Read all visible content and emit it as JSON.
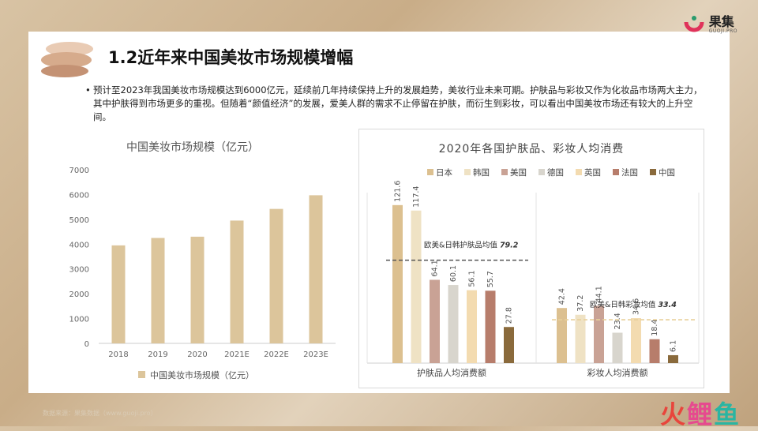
{
  "brand": {
    "name": "果集",
    "sub": "GUOJI.PRO"
  },
  "title": "1.2近年来中国美妆市场规模增幅",
  "bullet": "预计至2023年我国美妆市场规模达到6000亿元，延续前几年持续保持上升的发展趋势，美妆行业未来可期。护肤品与彩妆又作为化妆品市场两大主力，其中护肤得到市场更多的重视。但随着“颜值经济”的发展，爱美人群的需求不止停留在护肤，而衍生到彩妆，可以看出中国美妆市场还有较大的上升空间。",
  "footer": "数据来源：果集数据（www.guoji.pro）",
  "watermark": {
    "c1": "火",
    "c2": "鲤",
    "c3": "鱼"
  },
  "colors": {
    "tan": "#dcc59b",
    "dashed_dark": "#555555",
    "dashed_light": "#e8cf9a"
  },
  "chart_data": [
    {
      "type": "bar",
      "title": "中国美妆市场规模（亿元）",
      "categories": [
        "2018",
        "2019",
        "2020",
        "2021E",
        "2022E",
        "2023E"
      ],
      "series": [
        {
          "name": "中国美妆市场规模（亿元）",
          "values": [
            3950,
            4250,
            4300,
            4950,
            5420,
            5970
          ]
        }
      ],
      "yticks": [
        "0",
        "1000",
        "2000",
        "3000",
        "4000",
        "5000",
        "6000",
        "7000"
      ],
      "ylim": [
        0,
        7000
      ],
      "grid": false,
      "legend": "bottom"
    },
    {
      "type": "bar",
      "title": "2020年各国护肤品、彩妆人均消费",
      "categories": [
        "护肤品人均消费额",
        "彩妆人均消费额"
      ],
      "series": [
        {
          "name": "日本",
          "color": "#dcc090",
          "values": [
            121.6,
            42.4
          ]
        },
        {
          "name": "韩国",
          "color": "#efe2c4",
          "values": [
            117.4,
            37.2
          ]
        },
        {
          "name": "美国",
          "color": "#c9a295",
          "values": [
            64.1,
            44.1
          ]
        },
        {
          "name": "德国",
          "color": "#d8d5cd",
          "values": [
            60.1,
            23.4
          ]
        },
        {
          "name": "英国",
          "color": "#f3dbb0",
          "values": [
            56.1,
            34.6
          ]
        },
        {
          "name": "法国",
          "color": "#b77d6b",
          "values": [
            55.7,
            18.4
          ]
        },
        {
          "name": "中国",
          "color": "#8a6a3c",
          "values": [
            27.8,
            6.1
          ]
        }
      ],
      "annotations": [
        {
          "label": "欧美&日韩护肤品均值",
          "value_text": "79.2",
          "value": 79.2
        },
        {
          "label": "欧美&日韩彩妆均值",
          "value_text": "33.4",
          "value": 33.4
        }
      ],
      "ylim": [
        0,
        130
      ],
      "legend": "top"
    }
  ]
}
